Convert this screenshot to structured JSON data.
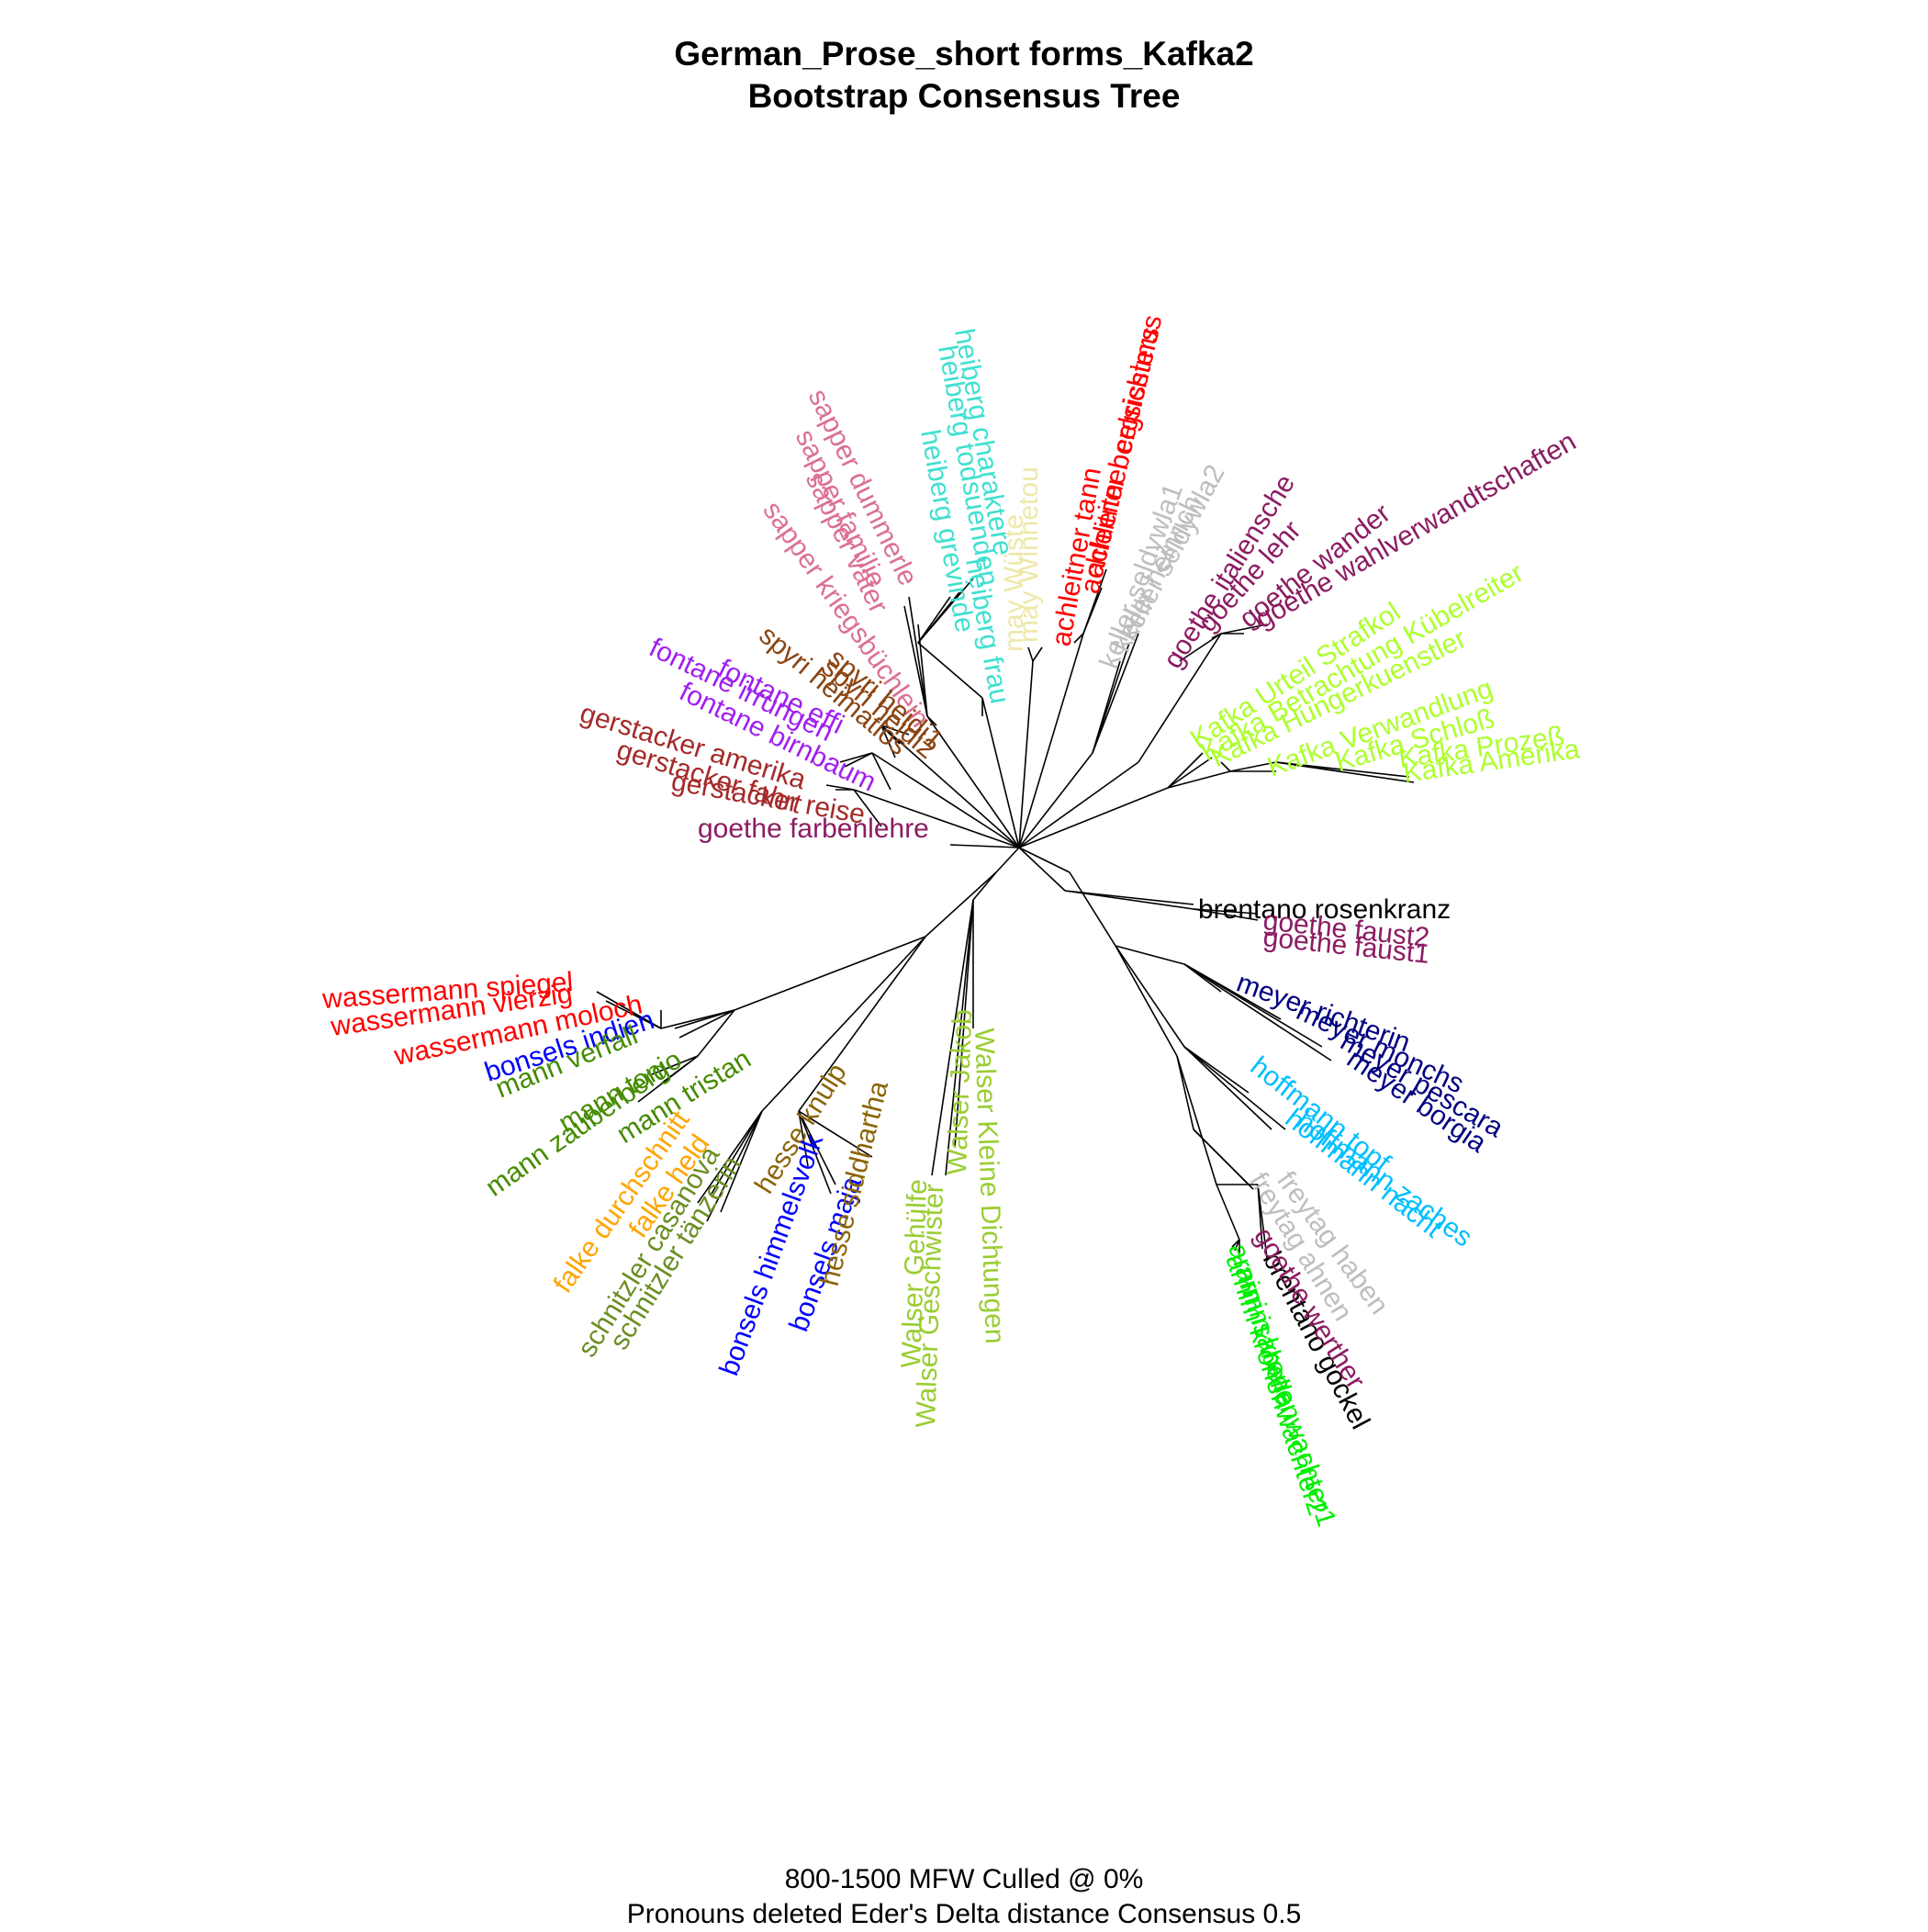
{
  "title": {
    "line1": "German_Prose_short forms_Kafka2",
    "line2": "Bootstrap Consensus Tree"
  },
  "footer": {
    "line1": "800-1500 MFW  Culled @ 0%",
    "line2": "Pronouns deleted Eder's Delta distance Consensus 0.5"
  },
  "diagram": {
    "type": "unrooted bootstrap consensus tree",
    "leaves": [
      {
        "label": "Kafka Amerika",
        "color": "#adff2f"
      },
      {
        "label": "Kafka Prozeß",
        "color": "#adff2f"
      },
      {
        "label": "Kafka Schloß",
        "color": "#adff2f"
      },
      {
        "label": "Kafka Verwandlung",
        "color": "#adff2f"
      },
      {
        "label": "Kafka Hungerkuenstler",
        "color": "#adff2f"
      },
      {
        "label": "Kafka Betrachtung Kübelreiter",
        "color": "#adff2f"
      },
      {
        "label": "Kafka Urteil Strafkol",
        "color": "#adff2f"
      },
      {
        "label": "goethe wahlverwandtschaften",
        "color": "#8b1c62"
      },
      {
        "label": "goethe wander",
        "color": "#8b1c62"
      },
      {
        "label": "goethe lehr",
        "color": "#8b1c62"
      },
      {
        "label": "goethe italiensche",
        "color": "#8b1c62"
      },
      {
        "label": "keller seldywla2",
        "color": "#bebebe"
      },
      {
        "label": "keller heinrich",
        "color": "#bebebe"
      },
      {
        "label": "keller seldywla1",
        "color": "#bebebe"
      },
      {
        "label": "achleitner celsissimus",
        "color": "#ff0000"
      },
      {
        "label": "achleitner bergrichters",
        "color": "#ff0000"
      },
      {
        "label": "achleitner tann",
        "color": "#ff0000"
      },
      {
        "label": "may Winnetou",
        "color": "#eee8aa"
      },
      {
        "label": "may Wüste",
        "color": "#eee8aa"
      },
      {
        "label": "heiberg charaktere",
        "color": "#40e0d0"
      },
      {
        "label": "heiberg todsuenden",
        "color": "#40e0d0"
      },
      {
        "label": "heiberg grevinde",
        "color": "#40e0d0"
      },
      {
        "label": "heiberg frau",
        "color": "#40e0d0"
      },
      {
        "label": "sapper dummerle",
        "color": "#db7093"
      },
      {
        "label": "sapper familie",
        "color": "#db7093"
      },
      {
        "label": "sapper vater",
        "color": "#db7093"
      },
      {
        "label": "sapper kriegsbüchlein",
        "color": "#db7093"
      },
      {
        "label": "spyri heidi1",
        "color": "#8b4513"
      },
      {
        "label": "spyri heidi2",
        "color": "#8b4513"
      },
      {
        "label": "spyri heimatlos",
        "color": "#8b4513"
      },
      {
        "label": "fontane irrungen",
        "color": "#a020f0"
      },
      {
        "label": "fontane effi",
        "color": "#a020f0"
      },
      {
        "label": "fontane birnbaum",
        "color": "#a020f0"
      },
      {
        "label": "gerstacker amerika",
        "color": "#a52a2a"
      },
      {
        "label": "gerstacker fahrt",
        "color": "#a52a2a"
      },
      {
        "label": "gerstacker reise",
        "color": "#a52a2a"
      },
      {
        "label": "goethe farbenlehre",
        "color": "#8b1c62"
      },
      {
        "label": "wassermann spiegel",
        "color": "#ff0000"
      },
      {
        "label": "wassermann vierzig",
        "color": "#ff0000"
      },
      {
        "label": "wassermann moloch",
        "color": "#ff0000"
      },
      {
        "label": "bonsels indien",
        "color": "#0000ff"
      },
      {
        "label": "mann verfall",
        "color": "#458b00"
      },
      {
        "label": "mann tonio",
        "color": "#458b00"
      },
      {
        "label": "mann tristan",
        "color": "#458b00"
      },
      {
        "label": "mann zauberberg",
        "color": "#458b00"
      },
      {
        "label": "falke durchschnitt",
        "color": "#ffa500"
      },
      {
        "label": "falke held",
        "color": "#ffa500"
      },
      {
        "label": "schnitzler casanova",
        "color": "#6b8e23"
      },
      {
        "label": "schnitzler tänzerin",
        "color": "#6b8e23"
      },
      {
        "label": "hesse knulp",
        "color": "#8b6508"
      },
      {
        "label": "bonsels himmelsvolk",
        "color": "#0000ff"
      },
      {
        "label": "bonsels maja",
        "color": "#0000ff"
      },
      {
        "label": "hesse siddhartha",
        "color": "#8b6508"
      },
      {
        "label": "Walser Gehülfe",
        "color": "#9acd32"
      },
      {
        "label": "Walser Geschwister",
        "color": "#9acd32"
      },
      {
        "label": "Walser Jakob",
        "color": "#9acd32"
      },
      {
        "label": "Walser Kleine Dichtungen",
        "color": "#9acd32"
      },
      {
        "label": "arnim isabella",
        "color": "#00ee00"
      },
      {
        "label": "arnim kronenwachter2",
        "color": "#00ee00"
      },
      {
        "label": "arnim kronenwachter1",
        "color": "#00ee00"
      },
      {
        "label": "brentano gockel",
        "color": "#000000"
      },
      {
        "label": "goethe werther",
        "color": "#8b1c62"
      },
      {
        "label": "freytag ahnen",
        "color": "#bebebe"
      },
      {
        "label": "freytag haben",
        "color": "#bebebe"
      },
      {
        "label": "hoffmann topf",
        "color": "#00bfff"
      },
      {
        "label": "hoffmann zaches",
        "color": "#00bfff"
      },
      {
        "label": "hoffmann nacht",
        "color": "#00bfff"
      },
      {
        "label": "meyer richterin",
        "color": "#000080"
      },
      {
        "label": "meyer monchs",
        "color": "#000080"
      },
      {
        "label": "meyer pescara",
        "color": "#000080"
      },
      {
        "label": "meyer borgia",
        "color": "#000080"
      },
      {
        "label": "brentano rosenkranz",
        "color": "#000000"
      },
      {
        "label": "goethe faust2",
        "color": "#8b1c62"
      },
      {
        "label": "goethe faust1",
        "color": "#8b1c62"
      }
    ]
  }
}
